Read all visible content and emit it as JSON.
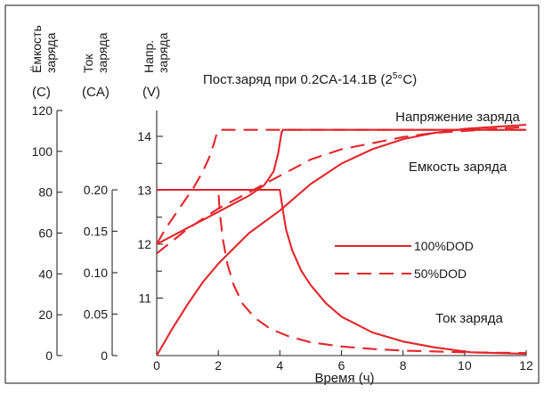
{
  "chart_data": {
    "type": "line",
    "title": "Пост.заряд при 0.2CA-14.1В (25°C)",
    "xlabel": "Время (ч)",
    "xlim": [
      0,
      12
    ],
    "x_ticks": [
      "0",
      "2",
      "4",
      "6",
      "8",
      "10",
      "12"
    ],
    "axes": [
      {
        "id": "capacity",
        "label": "Ёмкость заряда",
        "unit": "(C)",
        "ylim": [
          0,
          120
        ],
        "ticks": [
          "0",
          "20",
          "40",
          "60",
          "80",
          "100",
          "120"
        ]
      },
      {
        "id": "current",
        "label": "Ток заряда",
        "unit": "(CA)",
        "ylim": [
          0,
          0.2
        ],
        "ticks": [
          "0",
          "0.05",
          "0.10",
          "0.15",
          "0.20"
        ]
      },
      {
        "id": "voltage",
        "label": "Напр. заряда",
        "unit": "(V)",
        "ylim": [
          10,
          14
        ],
        "ticks": [
          "11",
          "12",
          "13",
          "14"
        ]
      }
    ],
    "curve_labels": {
      "voltage": "Напряжение заряда",
      "capacity": "Емкость заряда",
      "current": "Ток заряда"
    },
    "legend": {
      "placement": "right-middle",
      "entries": [
        {
          "label": "100%DOD",
          "style": "solid"
        },
        {
          "label": "50%DOD",
          "style": "dashed"
        }
      ]
    },
    "series": [
      {
        "name": "100%DOD",
        "quantity": "voltage",
        "axis": "voltage",
        "style": "solid",
        "x": [
          0,
          0.5,
          1.0,
          1.5,
          2.0,
          2.5,
          3.0,
          3.5,
          3.8,
          3.95,
          4.02,
          4.06,
          4.1,
          12
        ],
        "y": [
          12.0,
          12.15,
          12.3,
          12.45,
          12.6,
          12.75,
          12.9,
          13.1,
          13.35,
          13.7,
          13.95,
          14.08,
          14.12,
          14.12
        ]
      },
      {
        "name": "50%DOD",
        "quantity": "voltage",
        "axis": "voltage",
        "style": "dashed",
        "x": [
          0,
          0.3,
          0.6,
          0.9,
          1.2,
          1.5,
          1.7,
          1.85,
          1.95,
          2.0,
          12
        ],
        "y": [
          12.0,
          12.3,
          12.55,
          12.8,
          13.05,
          13.35,
          13.6,
          13.85,
          14.05,
          14.12,
          14.12
        ]
      },
      {
        "name": "100%DOD",
        "quantity": "current",
        "axis": "current",
        "style": "solid",
        "x": [
          0,
          4.0,
          4.1,
          4.2,
          4.4,
          4.7,
          5.0,
          5.5,
          6.0,
          7.0,
          8.0,
          9.0,
          9.8,
          10.2,
          12
        ],
        "y": [
          0.2,
          0.2,
          0.175,
          0.152,
          0.127,
          0.102,
          0.085,
          0.063,
          0.047,
          0.028,
          0.017,
          0.01,
          0.006,
          0.004,
          0.002
        ]
      },
      {
        "name": "50%DOD",
        "quantity": "current",
        "axis": "current",
        "style": "dashed",
        "x": [
          0,
          2.0,
          2.05,
          2.15,
          2.3,
          2.5,
          2.8,
          3.2,
          3.7,
          4.3,
          5.0,
          6.0,
          7.0,
          8.0,
          10.0,
          12
        ],
        "y": [
          0.2,
          0.2,
          0.172,
          0.14,
          0.11,
          0.085,
          0.062,
          0.045,
          0.032,
          0.023,
          0.016,
          0.011,
          0.008,
          0.006,
          0.004,
          0.003
        ]
      },
      {
        "name": "100%DOD",
        "quantity": "capacity",
        "axis": "capacity",
        "style": "solid",
        "x": [
          0,
          0.5,
          1.0,
          1.5,
          2.0,
          3.0,
          4.0,
          5.0,
          6.0,
          7.0,
          8.0,
          9.0,
          10.0,
          11.0,
          12.0
        ],
        "y": [
          0,
          13,
          25,
          36,
          45,
          60,
          71,
          84,
          94,
          101,
          106,
          109,
          111,
          112,
          113
        ]
      },
      {
        "name": "50%DOD",
        "quantity": "capacity",
        "axis": "capacity",
        "style": "dashed",
        "x": [
          0,
          0.5,
          1.0,
          1.5,
          2.0,
          3.0,
          4.0,
          5.0,
          6.0,
          7.0,
          8.0,
          9.0,
          10.0,
          11.0,
          12.0
        ],
        "y": [
          50,
          56,
          62,
          67,
          72,
          80,
          88,
          96,
          101,
          104,
          107,
          109,
          110,
          111,
          112
        ]
      }
    ],
    "colors": {
      "curve": "#e4252a",
      "axis": "#2a2a2a"
    }
  }
}
